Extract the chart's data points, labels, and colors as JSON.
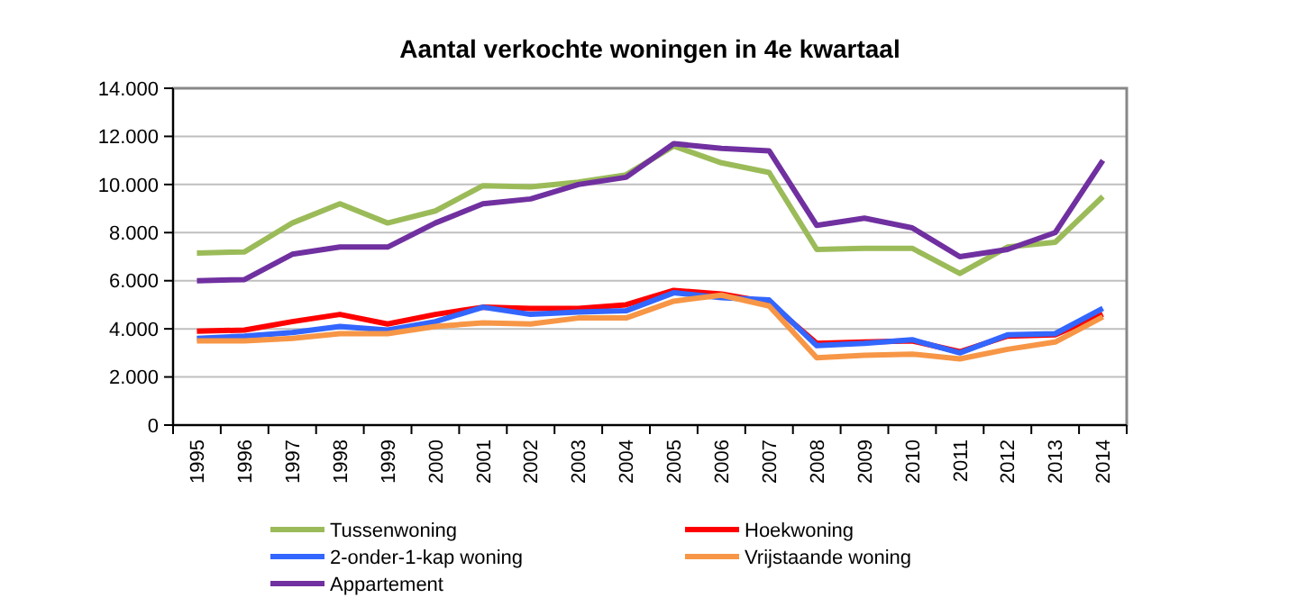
{
  "chart_data": {
    "type": "line",
    "title": "Aantal verkochte woningen in 4e kwartaal",
    "categories": [
      "1995",
      "1996",
      "1997",
      "1998",
      "1999",
      "2000",
      "2001",
      "2002",
      "2003",
      "2004",
      "2005",
      "2006",
      "2007",
      "2008",
      "2009",
      "2010",
      "2011",
      "2012",
      "2013",
      "2014"
    ],
    "series": [
      {
        "name": "Tussenwoning",
        "color": "#9bbb59",
        "values": [
          7150,
          7200,
          8400,
          9200,
          8400,
          8900,
          9950,
          9900,
          10100,
          10400,
          11600,
          10900,
          10500,
          7300,
          7350,
          7350,
          6300,
          7400,
          7600,
          9500
        ]
      },
      {
        "name": "Hoekwoning",
        "color": "#ff0000",
        "values": [
          3900,
          3950,
          4300,
          4600,
          4200,
          4600,
          4900,
          4850,
          4850,
          5000,
          5600,
          5450,
          5100,
          3400,
          3450,
          3500,
          3050,
          3700,
          3750,
          4600
        ]
      },
      {
        "name": "2-onder-1-kap woning",
        "color": "#3366ff",
        "values": [
          3600,
          3700,
          3850,
          4100,
          3950,
          4300,
          4900,
          4600,
          4700,
          4750,
          5500,
          5300,
          5200,
          3300,
          3400,
          3550,
          3000,
          3750,
          3800,
          4850
        ]
      },
      {
        "name": "Vrijstaande woning",
        "color": "#f79646",
        "values": [
          3500,
          3500,
          3600,
          3800,
          3800,
          4100,
          4250,
          4200,
          4450,
          4450,
          5150,
          5400,
          4950,
          2800,
          2900,
          2950,
          2750,
          3150,
          3450,
          4500
        ]
      },
      {
        "name": "Appartement",
        "color": "#7030a0",
        "values": [
          6000,
          6050,
          7100,
          7400,
          7400,
          8400,
          9200,
          9400,
          10000,
          10300,
          11700,
          11500,
          11400,
          8300,
          8600,
          8200,
          7000,
          7300,
          8000,
          11000
        ]
      }
    ],
    "ylim": [
      0,
      14000
    ],
    "yticks": [
      0,
      {
        "value": 2000,
        "label": "2.000"
      },
      {
        "value": 4000,
        "label": "4.000"
      },
      {
        "value": 6000,
        "label": "6.000"
      },
      {
        "value": 8000,
        "label": "8.000"
      },
      {
        "value": 10000,
        "label": "10.000"
      },
      {
        "value": 12000,
        "label": "12.000"
      },
      {
        "value": 14000,
        "label": "14.000"
      }
    ],
    "grid": "y",
    "legend": "bottom",
    "marker": "none",
    "line_style": "solid"
  }
}
